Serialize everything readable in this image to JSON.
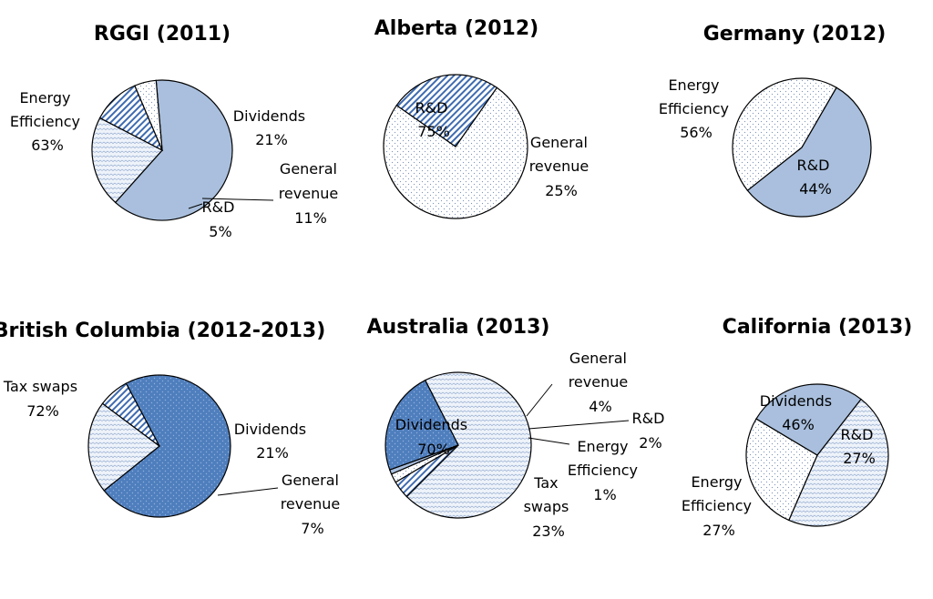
{
  "chart_data": [
    {
      "type": "pie",
      "title": "RGGI (2011)",
      "slices": [
        {
          "name": "Energy Efficiency",
          "value": 63,
          "pct": "63%",
          "label_lines": [
            "Energy",
            "Efficiency",
            "63%"
          ],
          "pattern": "solid"
        },
        {
          "name": "Dividends",
          "value": 21,
          "pct": "21%",
          "label_lines": [
            "Dividends",
            "21%"
          ],
          "pattern": "wave"
        },
        {
          "name": "General revenue",
          "value": 11,
          "pct": "11%",
          "label_lines": [
            "General",
            "revenue",
            "11%"
          ],
          "pattern": "stripe"
        },
        {
          "name": "R&D",
          "value": 5,
          "pct": "5%",
          "label_lines": [
            "R&D",
            "5%"
          ],
          "pattern": "dots"
        }
      ]
    },
    {
      "type": "pie",
      "title": "Alberta (2012)",
      "slices": [
        {
          "name": "R&D",
          "value": 75,
          "pct": "75%",
          "label_lines": [
            "R&D",
            "75%"
          ],
          "pattern": "dots"
        },
        {
          "name": "General revenue",
          "value": 25,
          "pct": "25%",
          "label_lines": [
            "General",
            "revenue",
            "25%"
          ],
          "pattern": "stripe"
        }
      ]
    },
    {
      "type": "pie",
      "title": "Germany (2012)",
      "slices": [
        {
          "name": "Energy Efficiency",
          "value": 56,
          "pct": "56%",
          "label_lines": [
            "Energy",
            "Efficiency",
            "56%"
          ],
          "pattern": "solid"
        },
        {
          "name": "R&D",
          "value": 44,
          "pct": "44%",
          "label_lines": [
            "R&D",
            "44%"
          ],
          "pattern": "dots"
        }
      ]
    },
    {
      "type": "pie",
      "title": "British Columbia (2012-2013)",
      "slices": [
        {
          "name": "Tax swaps",
          "value": 72,
          "pct": "72%",
          "label_lines": [
            "Tax swaps",
            "72%"
          ],
          "pattern": "darkdots"
        },
        {
          "name": "Dividends",
          "value": 21,
          "pct": "21%",
          "label_lines": [
            "Dividends",
            "21%"
          ],
          "pattern": "wave"
        },
        {
          "name": "General revenue",
          "value": 7,
          "pct": "7%",
          "label_lines": [
            "General",
            "revenue",
            "7%"
          ],
          "pattern": "stripe"
        }
      ]
    },
    {
      "type": "pie",
      "title": "Australia (2013)",
      "slices": [
        {
          "name": "Dividends",
          "value": 70,
          "pct": "70%",
          "label_lines": [
            "Dividends",
            "70%"
          ],
          "pattern": "wave"
        },
        {
          "name": "General revenue",
          "value": 4,
          "pct": "4%",
          "label_lines": [
            "General",
            "revenue",
            "4%"
          ],
          "pattern": "stripe"
        },
        {
          "name": "R&D",
          "value": 2,
          "pct": "2%",
          "label_lines": [
            "R&D",
            "2%"
          ],
          "pattern": "dots"
        },
        {
          "name": "Energy Efficiency",
          "value": 1,
          "pct": "1%",
          "label_lines": [
            "Energy",
            "Efficiency",
            "1%"
          ],
          "pattern": "solid"
        },
        {
          "name": "Tax swaps",
          "value": 23,
          "pct": "23%",
          "label_lines": [
            "Tax",
            "swaps",
            "23%"
          ],
          "pattern": "darkdots"
        }
      ]
    },
    {
      "type": "pie",
      "title": "California (2013)",
      "slices": [
        {
          "name": "Dividends",
          "value": 46,
          "pct": "46%",
          "label_lines": [
            "Dividends",
            "46%"
          ],
          "pattern": "wave"
        },
        {
          "name": "R&D",
          "value": 27,
          "pct": "27%",
          "label_lines": [
            "R&D",
            "27%"
          ],
          "pattern": "dots"
        },
        {
          "name": "Energy Efficiency",
          "value": 27,
          "pct": "27%",
          "label_lines": [
            "Energy",
            "Efficiency",
            "27%"
          ],
          "pattern": "solid"
        }
      ]
    }
  ],
  "colors": {
    "energy_efficiency": "#a9bfdd",
    "tax_swaps": "#4f7ebd",
    "stripe": "#3e6bb0",
    "light_fill": "#ffffff",
    "outline": "#000000"
  }
}
